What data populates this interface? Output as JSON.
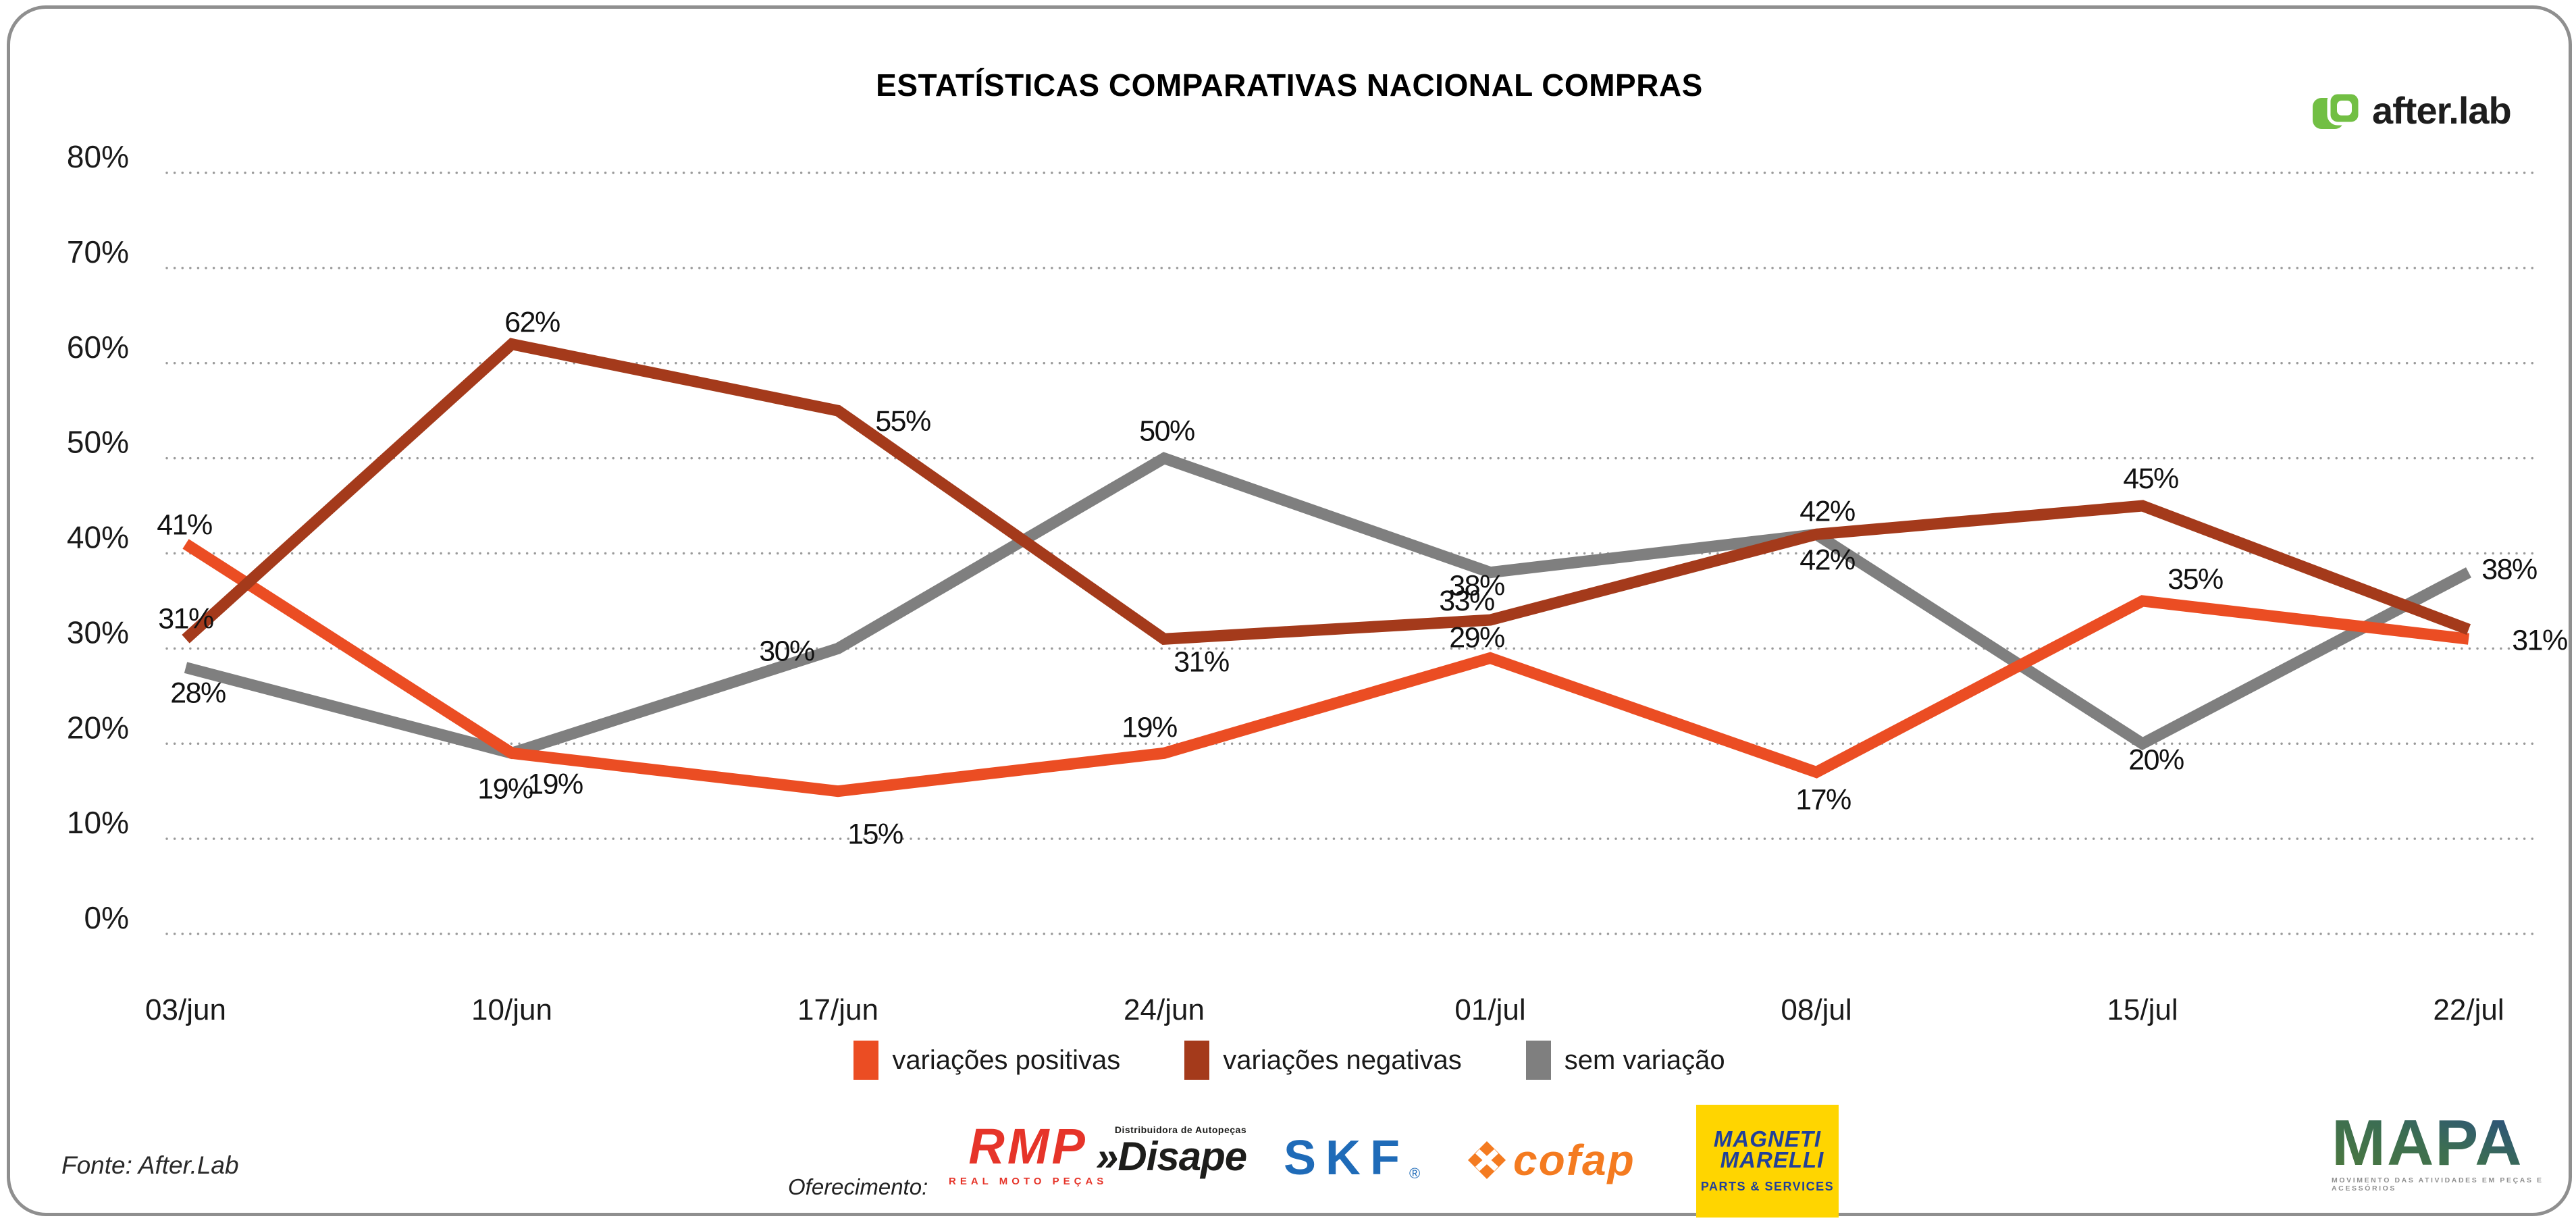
{
  "header": {
    "title": "ESTATÍSTICAS COMPARATIVAS NACIONAL COMPRAS",
    "brand": {
      "name": "after.lab",
      "icon_color": "#72BF44"
    }
  },
  "chart_data": {
    "type": "line",
    "title": "ESTATÍSTICAS COMPARATIVAS NACIONAL COMPRAS",
    "x_labels": [
      "03/jun",
      "10/jun",
      "17/jun",
      "24/jun",
      "01/jul",
      "08/jul",
      "15/jul",
      "22/jul"
    ],
    "y_ticks": [
      "0%",
      "10%",
      "20%",
      "30%",
      "40%",
      "50%",
      "60%",
      "70%",
      "80%"
    ],
    "ylim": [
      0,
      80
    ],
    "grid": "dotted-horizontal",
    "legend_position": "bottom-center",
    "series": [
      {
        "name": "variações positivas",
        "color": "#EB4D23",
        "values": [
          41,
          19,
          15,
          19,
          29,
          17,
          35,
          31
        ],
        "labels": [
          "41%",
          "19%",
          "15%",
          "19%",
          "29%",
          "17%",
          "35%",
          "31%"
        ]
      },
      {
        "name": "variações negativas",
        "color": "#A43A1B",
        "values": [
          31,
          62,
          55,
          31,
          33,
          42,
          45,
          32
        ],
        "labels": [
          "31%",
          "62%",
          "55%",
          "31%",
          "33%",
          "42%",
          "45%",
          ""
        ]
      },
      {
        "name": "sem variação",
        "color": "#7F7F7F",
        "values": [
          28,
          19,
          30,
          50,
          38,
          42,
          20,
          38
        ],
        "labels": [
          "28%",
          "19%",
          "30%",
          "50%",
          "38%",
          "42%",
          "20%",
          "38%"
        ]
      }
    ]
  },
  "footer": {
    "fonte": "Fonte: After.Lab",
    "oferecimento_label": "Oferecimento:",
    "sponsors": {
      "rmp": {
        "text": "RMP",
        "subtext": "REAL MOTO PEÇAS",
        "color": "#E63429"
      },
      "disape": {
        "prefix": "»",
        "text": "Disape",
        "subtext": "Distribuidora de Autopeças",
        "color": "#1D1D1B"
      },
      "skf": {
        "text": "SKF",
        "reg": "®",
        "color": "#1F6BB8"
      },
      "cofap": {
        "text": "cofap",
        "color": "#F47B20"
      },
      "magneti": {
        "line1": "MAGNETI",
        "line2": "MARELLI",
        "subtext": "PARTS & SERVICES",
        "bg": "#FFD500",
        "fg": "#21409A"
      }
    },
    "mapa": {
      "text": "MAPA",
      "subtext": "MOVIMENTO DAS ATIVIDADES EM PEÇAS E ACESSÓRIOS"
    }
  }
}
